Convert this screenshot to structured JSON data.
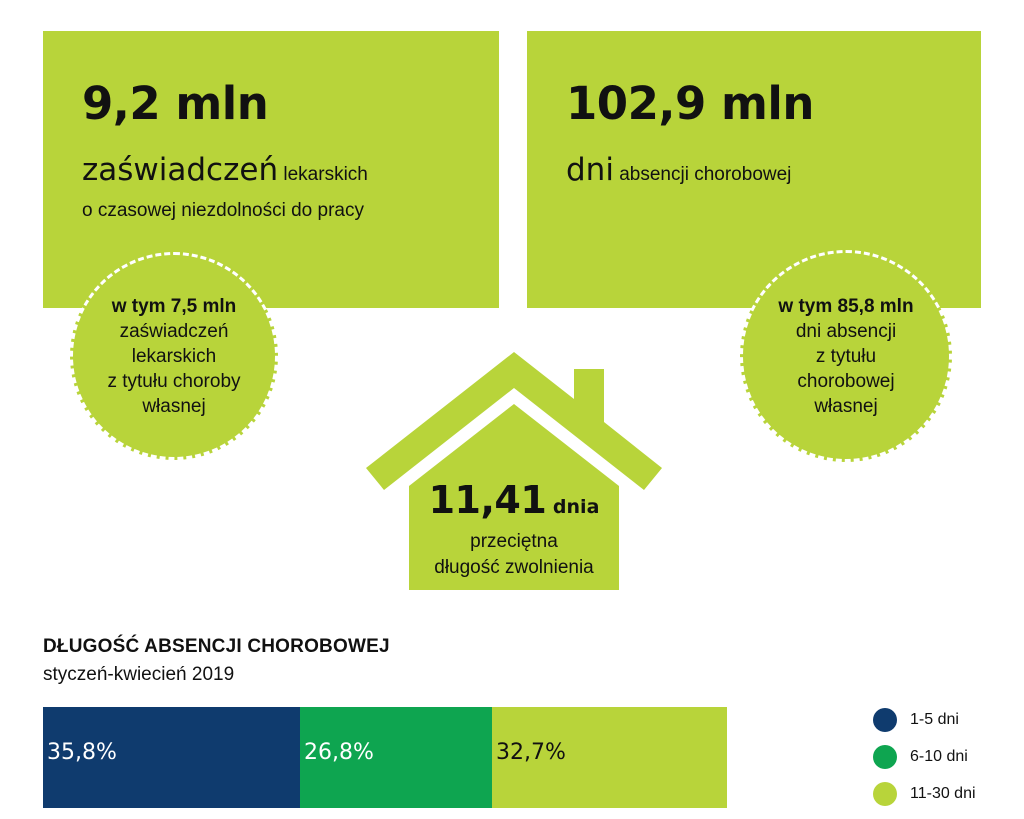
{
  "stats": {
    "certificates": {
      "value": "9,2 mln",
      "word": "zaświadczeń",
      "word_suffix": " lekarskich",
      "line2": "o czasowej niezdolności do pracy",
      "circle_bold": "w tym 7,5 mln",
      "circle_lines": [
        "zaświadczeń",
        "lekarskich",
        "z tytułu choroby",
        "własnej"
      ]
    },
    "days": {
      "value": "102,9 mln",
      "word": "dni",
      "word_suffix": " absencji chorobowej",
      "circle_bold": "w tym 85,8 mln",
      "circle_lines": [
        "dni absencji",
        "z tytułu",
        "chorobowej",
        "własnej"
      ]
    },
    "average": {
      "value": "11,41",
      "unit": " dnia",
      "lines": [
        "przeciętna",
        "długość zwolnienia"
      ]
    }
  },
  "colors": {
    "green_light": "#b8d43a",
    "navy": "#0f3b6e",
    "green": "#0ea550"
  },
  "icons": [
    "house-icon"
  ],
  "chart_data": {
    "type": "bar",
    "orientation": "horizontal-stacked",
    "title": "DŁUGOŚĆ ABSENCJI CHOROBOWEJ",
    "subtitle": "styczeń-kwiecień 2019",
    "series": [
      {
        "name": "1-5 dni",
        "value": 35.8,
        "label": "35,8%",
        "color": "#0f3b6e"
      },
      {
        "name": "6-10 dni",
        "value": 26.8,
        "label": "26,8%",
        "color": "#0ea550"
      },
      {
        "name": "11-30 dni",
        "value": 32.7,
        "label": "32,7%",
        "color": "#b8d43a"
      }
    ],
    "legend_position": "right",
    "grid": false
  }
}
